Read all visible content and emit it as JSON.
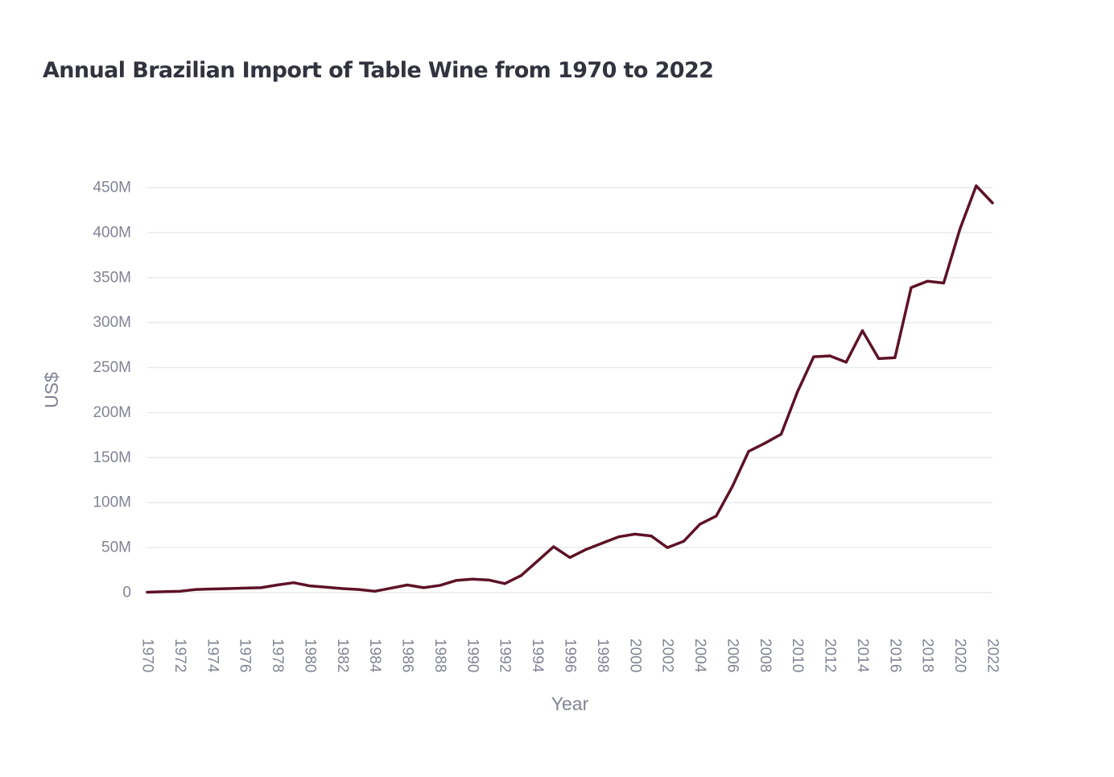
{
  "title": "Annual Brazilian Import of Table Wine from 1970 to 2022",
  "chart_data": {
    "type": "line",
    "title": "Annual Brazilian Import of Table Wine from 1970 to 2022",
    "xlabel": "Year",
    "ylabel": "US$",
    "x": [
      1970,
      1971,
      1972,
      1973,
      1974,
      1975,
      1976,
      1977,
      1978,
      1979,
      1980,
      1981,
      1982,
      1983,
      1984,
      1985,
      1986,
      1987,
      1988,
      1989,
      1990,
      1991,
      1992,
      1993,
      1994,
      1995,
      1996,
      1997,
      1998,
      1999,
      2000,
      2001,
      2002,
      2003,
      2004,
      2005,
      2006,
      2007,
      2008,
      2009,
      2010,
      2011,
      2012,
      2013,
      2014,
      2015,
      2016,
      2017,
      2018,
      2019,
      2020,
      2021,
      2022
    ],
    "series": [
      {
        "values": [
          0.5,
          1.0,
          1.5,
          3.5,
          4.0,
          4.5,
          5.0,
          5.5,
          8.5,
          11.0,
          7.5,
          6.0,
          4.5,
          3.5,
          1.5,
          5.0,
          8.5,
          5.5,
          8.0,
          13.5,
          15.0,
          14.0,
          10.0,
          19.0,
          35.0,
          51.0,
          39.0,
          48.0,
          55.0,
          62.0,
          65.0,
          63.0,
          50.0,
          57.0,
          76.0,
          85.0,
          118.0,
          157.0,
          166.0,
          176.0,
          223.0,
          262.0,
          263.0,
          256.0,
          291.0,
          260.0,
          261.0,
          339.0,
          346.0,
          344.0,
          404.0,
          452.0,
          433.0
        ],
        "color": "#5e1226"
      }
    ],
    "x_ticks": [
      "1970",
      "1972",
      "1974",
      "1976",
      "1978",
      "1980",
      "1982",
      "1984",
      "1986",
      "1988",
      "1990",
      "1992",
      "1994",
      "1996",
      "1998",
      "2000",
      "2002",
      "2004",
      "2006",
      "2008",
      "2010",
      "2012",
      "2014",
      "2016",
      "2018",
      "2020",
      "2022"
    ],
    "y_ticks": [
      {
        "value": 0,
        "label": "0"
      },
      {
        "value": 50,
        "label": "50M"
      },
      {
        "value": 100,
        "label": "100M"
      },
      {
        "value": 150,
        "label": "150M"
      },
      {
        "value": 200,
        "label": "200M"
      },
      {
        "value": 250,
        "label": "250M"
      },
      {
        "value": 300,
        "label": "300M"
      },
      {
        "value": 350,
        "label": "350M"
      },
      {
        "value": 400,
        "label": "400M"
      },
      {
        "value": 450,
        "label": "450M"
      }
    ],
    "y_unit": "millions US$",
    "xlim": [
      1970,
      2022
    ],
    "ylim": [
      0,
      450
    ],
    "grid": true,
    "legend": "none"
  },
  "colors": {
    "line": "#5e1226",
    "grid": "#e6e9ef",
    "text": "#808495",
    "title": "#31333f"
  }
}
